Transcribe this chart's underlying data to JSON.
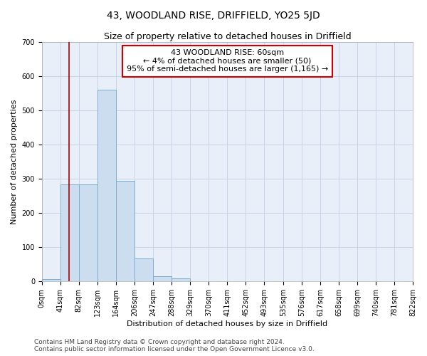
{
  "title": "43, WOODLAND RISE, DRIFFIELD, YO25 5JD",
  "subtitle": "Size of property relative to detached houses in Driffield",
  "xlabel": "Distribution of detached houses by size in Driffield",
  "ylabel": "Number of detached properties",
  "bin_edges": [
    0,
    41,
    82,
    123,
    164,
    206,
    247,
    288,
    329,
    370,
    411,
    452,
    493,
    535,
    576,
    617,
    658,
    699,
    740,
    781,
    822
  ],
  "bar_heights": [
    8,
    283,
    283,
    560,
    295,
    68,
    15,
    10,
    0,
    0,
    0,
    0,
    0,
    0,
    0,
    0,
    0,
    0,
    0,
    0
  ],
  "bar_color": "#ccddf0",
  "bar_edge_color": "#7aadd4",
  "property_line_x": 60,
  "property_line_color": "#aa0000",
  "annotation_line1": "43 WOODLAND RISE: 60sqm",
  "annotation_line2": "← 4% of detached houses are smaller (50)",
  "annotation_line3": "95% of semi-detached houses are larger (1,165) →",
  "annotation_box_color": "#cc0000",
  "ylim": [
    0,
    700
  ],
  "yticks": [
    0,
    100,
    200,
    300,
    400,
    500,
    600,
    700
  ],
  "title_fontsize": 10,
  "subtitle_fontsize": 9,
  "xlabel_fontsize": 8,
  "ylabel_fontsize": 8,
  "tick_fontsize": 7,
  "annotation_fontsize": 8,
  "footer_text": "Contains HM Land Registry data © Crown copyright and database right 2024.\nContains public sector information licensed under the Open Government Licence v3.0.",
  "footer_fontsize": 6.5,
  "background_color": "#ffffff",
  "plot_bg_color": "#e8eff8",
  "grid_color": "#c8d4e8"
}
